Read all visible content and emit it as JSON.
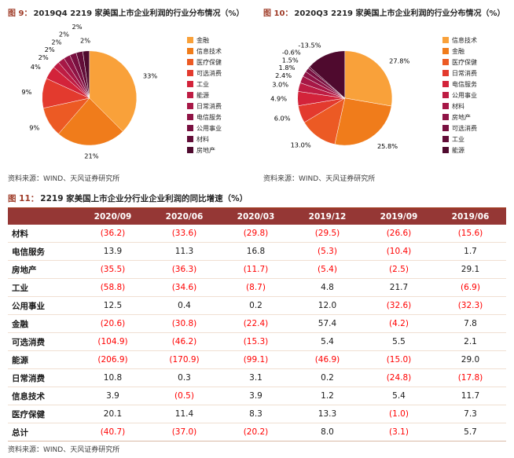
{
  "styles": {
    "accent_red": "#9E3A26",
    "table_header_bg": "#953735",
    "negative_value_color": "#FF0000"
  },
  "chart_data": [
    {
      "type": "pie",
      "figure_label": "图 9：",
      "title": "2019Q4 2219 家美国上市企业利润的行业分布情况（%）",
      "source": "资料来源：WIND、天风证券研究所",
      "legend_position": "right",
      "series": [
        {
          "name": "金融",
          "value": 33,
          "pct_label": "33%",
          "color": "#F9A13A"
        },
        {
          "name": "信息技术",
          "value": 21,
          "pct_label": "21%",
          "color": "#F07C1B"
        },
        {
          "name": "医疗保健",
          "value": 9,
          "pct_label": "9%",
          "color": "#EC5A24"
        },
        {
          "name": "可选消费",
          "value": 9,
          "pct_label": "9%",
          "color": "#E33A2E"
        },
        {
          "name": "工业",
          "value": 4,
          "pct_label": "4%",
          "color": "#D3233A"
        },
        {
          "name": "能源",
          "value": 2,
          "pct_label": "2%",
          "color": "#BE1C43"
        },
        {
          "name": "日常消费",
          "value": 2,
          "pct_label": "2%",
          "color": "#A71746"
        },
        {
          "name": "电信服务",
          "value": 2,
          "pct_label": "2%",
          "color": "#8F1345"
        },
        {
          "name": "公用事业",
          "value": 2,
          "pct_label": "2%",
          "color": "#791040"
        },
        {
          "name": "材料",
          "value": 2,
          "pct_label": "2%",
          "color": "#630D38"
        },
        {
          "name": "房地产",
          "value": 2,
          "pct_label": "2%",
          "color": "#4F0A2E"
        }
      ]
    },
    {
      "type": "pie",
      "figure_label": "图 10：",
      "title": "2020Q3 2219 家美国上市企业利润的行业分布情况（%）",
      "source": "资料来源：WIND、天风证券研究所",
      "legend_position": "right",
      "series": [
        {
          "name": "信息技术",
          "value": 27.8,
          "pct_label": "27.8%",
          "color": "#F9A13A"
        },
        {
          "name": "金融",
          "value": 25.8,
          "pct_label": "25.8%",
          "color": "#F07C1B"
        },
        {
          "name": "医疗保健",
          "value": 13.0,
          "pct_label": "13.0%",
          "color": "#EC5A24"
        },
        {
          "name": "日常消费",
          "value": 6.0,
          "pct_label": "6.0%",
          "color": "#E33A2E"
        },
        {
          "name": "电信服务",
          "value": 4.9,
          "pct_label": "4.9%",
          "color": "#D3233A"
        },
        {
          "name": "公用事业",
          "value": 3.0,
          "pct_label": "3.0%",
          "color": "#BE1C43"
        },
        {
          "name": "材料",
          "value": 2.4,
          "pct_label": "2.4%",
          "color": "#A71746"
        },
        {
          "name": "房地产",
          "value": 1.8,
          "pct_label": "1.8%",
          "color": "#8F1345"
        },
        {
          "name": "可选消费",
          "value": 1.5,
          "pct_label": "1.5%",
          "color": "#791040"
        },
        {
          "name": "工业",
          "value": -0.6,
          "pct_label": "-0.6%",
          "color": "#630D38"
        },
        {
          "name": "能源",
          "value": -13.5,
          "pct_label": "-13.5%",
          "color": "#4F0A2E"
        }
      ]
    },
    {
      "type": "table",
      "figure_label": "图 11：",
      "title": "2219 家美国上市企业分行业企业利润的同比增速（%）",
      "source": "资料来源：WIND、天风证券研究所",
      "columns": [
        "2020/09",
        "2020/06",
        "2020/03",
        "2019/12",
        "2019/09",
        "2019/06"
      ],
      "rows": [
        {
          "label": "材料",
          "cells": [
            "(36.2)",
            "(33.6)",
            "(29.8)",
            "(29.5)",
            "(26.6)",
            "(15.6)"
          ]
        },
        {
          "label": "电信服务",
          "cells": [
            "13.9",
            "11.3",
            "16.8",
            "(5.3)",
            "(10.4)",
            "1.7"
          ]
        },
        {
          "label": "房地产",
          "cells": [
            "(35.5)",
            "(36.3)",
            "(11.7)",
            "(5.4)",
            "(2.5)",
            "29.1"
          ]
        },
        {
          "label": "工业",
          "cells": [
            "(58.8)",
            "(34.6)",
            "(8.7)",
            "4.8",
            "21.7",
            "(6.9)"
          ]
        },
        {
          "label": "公用事业",
          "cells": [
            "12.5",
            "0.4",
            "0.2",
            "12.0",
            "(32.6)",
            "(32.3)"
          ]
        },
        {
          "label": "金融",
          "cells": [
            "(20.6)",
            "(30.8)",
            "(22.4)",
            "57.4",
            "(4.2)",
            "7.8"
          ]
        },
        {
          "label": "可选消费",
          "cells": [
            "(104.9)",
            "(46.2)",
            "(15.3)",
            "5.4",
            "5.5",
            "2.1"
          ]
        },
        {
          "label": "能源",
          "cells": [
            "(206.9)",
            "(170.9)",
            "(99.1)",
            "(46.9)",
            "(15.0)",
            "29.0"
          ]
        },
        {
          "label": "日常消费",
          "cells": [
            "10.8",
            "0.3",
            "3.1",
            "0.2",
            "(24.8)",
            "(17.8)"
          ]
        },
        {
          "label": "信息技术",
          "cells": [
            "3.9",
            "(0.5)",
            "3.9",
            "1.2",
            "5.4",
            "11.7"
          ]
        },
        {
          "label": "医疗保健",
          "cells": [
            "20.1",
            "11.4",
            "8.3",
            "13.3",
            "(1.0)",
            "7.3"
          ]
        },
        {
          "label": "总计",
          "cells": [
            "(40.7)",
            "(37.0)",
            "(20.2)",
            "8.0",
            "(3.1)",
            "5.7"
          ]
        }
      ]
    }
  ]
}
